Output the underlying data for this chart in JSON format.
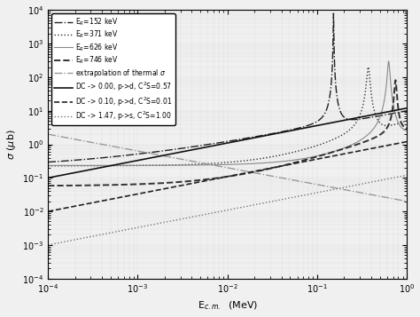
{
  "xlabel": "E$_{c.m.}$  (MeV)",
  "ylabel": "$\\sigma$ ($\\mu$b)",
  "background_color": "#f5f5f5",
  "legend_entries": [
    {
      "label": "E$_R$=152 keV",
      "linestyle": "-.",
      "color": "#222222",
      "linewidth": 1.0
    },
    {
      "label": "E$_R$=371 keV",
      "linestyle": ":",
      "color": "#333333",
      "linewidth": 1.0
    },
    {
      "label": "E$_R$=626 keV",
      "linestyle": "-",
      "color": "#888888",
      "linewidth": 0.8
    },
    {
      "label": "E$_R$=746 keV",
      "linestyle": "--",
      "color": "#333333",
      "linewidth": 1.4
    },
    {
      "label": "extrapolation of thermal $\\sigma$",
      "linestyle": "-.",
      "color": "#999999",
      "linewidth": 1.0
    },
    {
      "label": "DC -> 0.00, p->d, C$^2$S=0.57",
      "linestyle": "-",
      "color": "#111111",
      "linewidth": 1.2
    },
    {
      "label": "DC -> 0.10, p->d, C$^2$S=0.01",
      "linestyle": "--",
      "color": "#222222",
      "linewidth": 1.2
    },
    {
      "label": "DC -> 1.47, p->s, C$^2$S=1.00",
      "linestyle": ":",
      "color": "#777777",
      "linewidth": 1.0
    }
  ]
}
